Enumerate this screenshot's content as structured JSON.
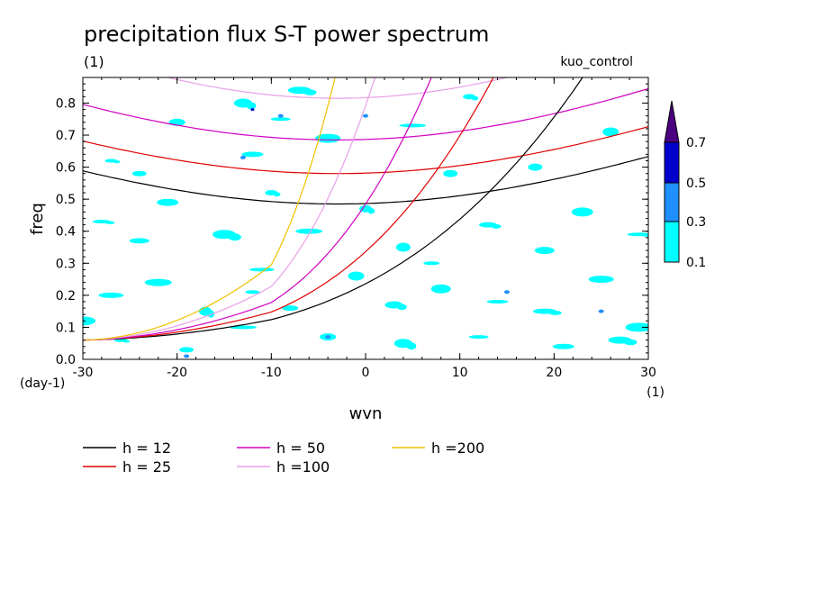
{
  "chart_data": {
    "type": "contour",
    "title": "precipitation flux S-T power spectrum",
    "units_label": "(1)",
    "run_label": "kuo_control",
    "xlabel": "wvn",
    "ylabel": "freq",
    "x_units": "(1)",
    "y_units": "(day-1)",
    "xlim": [
      -30,
      30
    ],
    "ylim": [
      0,
      0.88
    ],
    "x_ticks": [
      -30,
      -20,
      -10,
      0,
      10,
      20,
      30
    ],
    "x_tick_labels": [
      "-30",
      "-20",
      "-10",
      "0",
      "10",
      "20",
      "30"
    ],
    "y_ticks": [
      0.0,
      0.1,
      0.2,
      0.3,
      0.4,
      0.5,
      0.6,
      0.7,
      0.8
    ],
    "y_tick_labels": [
      "0.0",
      "0.1",
      "0.2",
      "0.3",
      "0.4",
      "0.5",
      "0.6",
      "0.7",
      "0.8"
    ],
    "colorbar": {
      "levels": [
        0.1,
        0.3,
        0.5,
        0.7
      ],
      "level_labels": [
        "0.1",
        "0.3",
        "0.5",
        "0.7"
      ],
      "colors": [
        "#00ffff",
        "#1e90ff",
        "#0000cd",
        "#4b0082"
      ]
    },
    "dispersion_curves": [
      {
        "label": "h = 12",
        "h": 12,
        "color": "#000000"
      },
      {
        "label": "h = 25",
        "h": 25,
        "color": "#e00000"
      },
      {
        "label": "h = 50",
        "h": 50,
        "color": "#d000c0"
      },
      {
        "label": "h =100",
        "h": 100,
        "color": "#e8a0e8"
      },
      {
        "label": "h =200",
        "h": 200,
        "color": "#f0c000"
      }
    ],
    "curve_families": [
      {
        "type": "inertia-gravity",
        "n": 1,
        "h": [
          12,
          25,
          50,
          100
        ]
      },
      {
        "type": "kelvin",
        "h": [
          12,
          25,
          50,
          100,
          200
        ]
      }
    ],
    "power_blobs": [
      [
        -27,
        0.62,
        1
      ],
      [
        -24,
        0.58,
        1
      ],
      [
        -20,
        0.74,
        1
      ],
      [
        -13,
        0.8,
        1
      ],
      [
        -9,
        0.75,
        1
      ],
      [
        -12,
        0.64,
        1
      ],
      [
        -7,
        0.84,
        1
      ],
      [
        -4,
        0.69,
        1
      ],
      [
        5,
        0.73,
        1
      ],
      [
        11,
        0.82,
        1
      ],
      [
        18,
        0.6,
        1
      ],
      [
        26,
        0.71,
        1
      ],
      [
        -28,
        0.43,
        1
      ],
      [
        -24,
        0.37,
        1
      ],
      [
        -21,
        0.49,
        1
      ],
      [
        -15,
        0.39,
        1
      ],
      [
        -11,
        0.28,
        1
      ],
      [
        -6,
        0.4,
        1
      ],
      [
        0,
        0.47,
        1
      ],
      [
        4,
        0.35,
        1
      ],
      [
        7,
        0.3,
        1
      ],
      [
        13,
        0.42,
        1
      ],
      [
        19,
        0.34,
        1
      ],
      [
        23,
        0.46,
        1
      ],
      [
        29,
        0.39,
        1
      ],
      [
        -27,
        0.2,
        1
      ],
      [
        -22,
        0.24,
        1
      ],
      [
        -17,
        0.15,
        1
      ],
      [
        -12,
        0.21,
        1
      ],
      [
        -8,
        0.16,
        1
      ],
      [
        3,
        0.17,
        1
      ],
      [
        8,
        0.22,
        1
      ],
      [
        14,
        0.18,
        1
      ],
      [
        19,
        0.15,
        1
      ],
      [
        25,
        0.25,
        1
      ],
      [
        29,
        0.1,
        1
      ],
      [
        -26,
        0.06,
        1
      ],
      [
        -19,
        0.03,
        1
      ],
      [
        -4,
        0.07,
        1
      ],
      [
        4,
        0.05,
        1
      ],
      [
        12,
        0.07,
        1
      ],
      [
        21,
        0.04,
        1
      ],
      [
        27,
        0.06,
        1
      ],
      [
        -30,
        0.12,
        1
      ],
      [
        -13,
        0.1,
        1
      ],
      [
        -10,
        0.52,
        1
      ],
      [
        9,
        0.58,
        1
      ],
      [
        -1,
        0.26,
        1
      ],
      [
        -9,
        0.76,
        2
      ],
      [
        -13,
        0.63,
        2
      ],
      [
        -4,
        0.07,
        2
      ],
      [
        25,
        0.15,
        2
      ],
      [
        15,
        0.21,
        2
      ],
      [
        0,
        0.76,
        2
      ],
      [
        -12,
        0.78,
        3
      ],
      [
        -19,
        0.01,
        2
      ]
    ]
  }
}
